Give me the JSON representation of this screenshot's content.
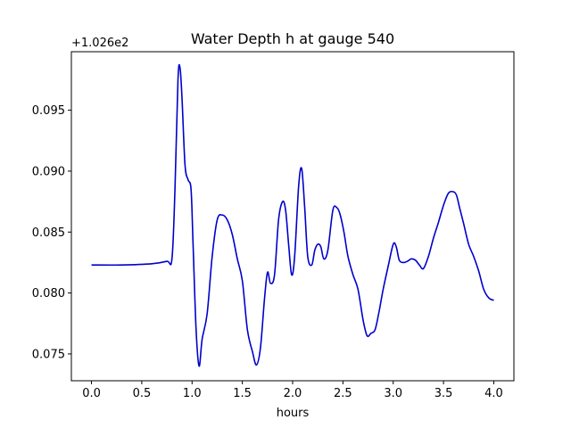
{
  "chart_data": {
    "type": "line",
    "title": "Water Depth h at gauge 540",
    "xlabel": "hours",
    "ylabel": "",
    "y_offset_label": "+1.026e2",
    "xlim": [
      -0.2,
      4.2
    ],
    "ylim": [
      0.0728,
      0.0998
    ],
    "x_ticks": [
      0.0,
      0.5,
      1.0,
      1.5,
      2.0,
      2.5,
      3.0,
      3.5,
      4.0
    ],
    "x_tick_labels": [
      "0.0",
      "0.5",
      "1.0",
      "1.5",
      "2.0",
      "2.5",
      "3.0",
      "3.5",
      "4.0"
    ],
    "y_ticks": [
      0.075,
      0.08,
      0.085,
      0.09,
      0.095
    ],
    "y_tick_labels": [
      "0.075",
      "0.080",
      "0.085",
      "0.090",
      "0.095"
    ],
    "grid": false,
    "series": [
      {
        "color": "#0000cc",
        "x": [
          0.0,
          0.3,
          0.6,
          0.75,
          0.8,
          0.83,
          0.86,
          0.88,
          0.9,
          0.93,
          0.96,
          0.99,
          1.01,
          1.04,
          1.07,
          1.1,
          1.15,
          1.2,
          1.25,
          1.3,
          1.35,
          1.4,
          1.45,
          1.5,
          1.55,
          1.6,
          1.64,
          1.68,
          1.72,
          1.75,
          1.78,
          1.82,
          1.86,
          1.9,
          1.93,
          1.96,
          1.99,
          2.02,
          2.06,
          2.09,
          2.12,
          2.15,
          2.19,
          2.22,
          2.25,
          2.28,
          2.31,
          2.35,
          2.4,
          2.44,
          2.47,
          2.51,
          2.55,
          2.6,
          2.65,
          2.7,
          2.74,
          2.78,
          2.82,
          2.86,
          2.9,
          2.95,
          3.0,
          3.03,
          3.06,
          3.1,
          3.14,
          3.18,
          3.22,
          3.26,
          3.3,
          3.35,
          3.4,
          3.45,
          3.5,
          3.55,
          3.6,
          3.63,
          3.66,
          3.7,
          3.75,
          3.8,
          3.85,
          3.9,
          3.95,
          4.0
        ],
        "values": [
          0.0823,
          0.0823,
          0.0824,
          0.0826,
          0.0828,
          0.0885,
          0.0975,
          0.0985,
          0.096,
          0.0905,
          0.0893,
          0.0885,
          0.084,
          0.077,
          0.074,
          0.0762,
          0.0783,
          0.083,
          0.086,
          0.0864,
          0.086,
          0.0848,
          0.0828,
          0.081,
          0.077,
          0.0752,
          0.0741,
          0.0755,
          0.0795,
          0.0817,
          0.0808,
          0.0815,
          0.086,
          0.0875,
          0.0868,
          0.084,
          0.0815,
          0.083,
          0.0888,
          0.0902,
          0.087,
          0.083,
          0.0823,
          0.0835,
          0.084,
          0.0838,
          0.0828,
          0.0835,
          0.0868,
          0.087,
          0.0865,
          0.085,
          0.083,
          0.0815,
          0.0803,
          0.0778,
          0.0765,
          0.0767,
          0.077,
          0.0785,
          0.0803,
          0.0822,
          0.084,
          0.0838,
          0.0827,
          0.0825,
          0.0826,
          0.0828,
          0.0827,
          0.0823,
          0.082,
          0.083,
          0.0845,
          0.0858,
          0.0872,
          0.0882,
          0.0883,
          0.088,
          0.087,
          0.0857,
          0.084,
          0.083,
          0.0818,
          0.0803,
          0.0796,
          0.0794
        ]
      }
    ]
  }
}
